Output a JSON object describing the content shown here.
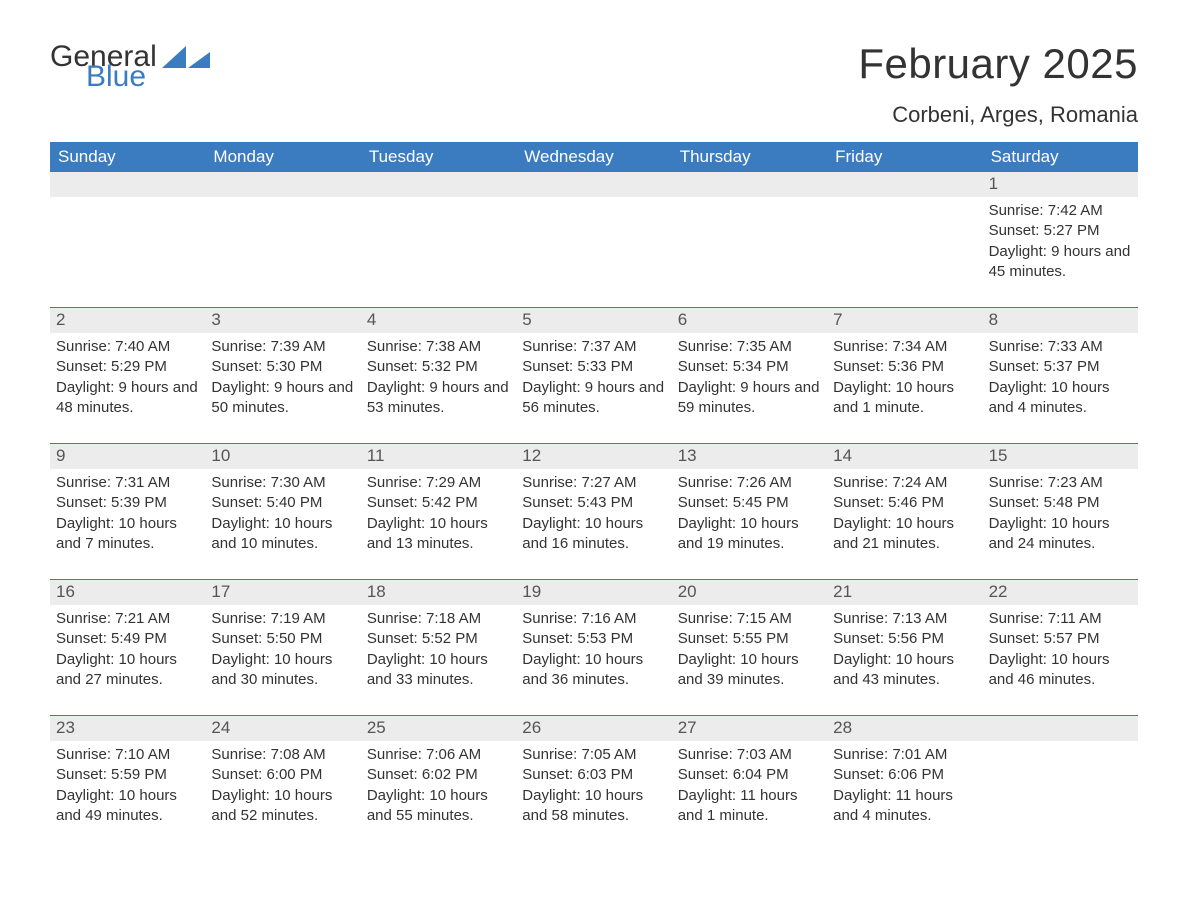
{
  "brand": {
    "word1": "General",
    "word2": "Blue"
  },
  "colors": {
    "header_bg": "#3b7bbf",
    "header_text": "#ffffff",
    "band_bg": "#ececec",
    "rule": "#3b7bbf",
    "text": "#333333",
    "brand_blue": "#3b7bbf"
  },
  "typography": {
    "month_title_pt": 42,
    "location_pt": 22,
    "weekday_pt": 17,
    "daynum_pt": 17,
    "body_pt": 15
  },
  "title": "February 2025",
  "location": "Corbeni, Arges, Romania",
  "weekdays": [
    "Sunday",
    "Monday",
    "Tuesday",
    "Wednesday",
    "Thursday",
    "Friday",
    "Saturday"
  ],
  "weeks": [
    {
      "days": [
        {
          "num": "",
          "lines": []
        },
        {
          "num": "",
          "lines": []
        },
        {
          "num": "",
          "lines": []
        },
        {
          "num": "",
          "lines": []
        },
        {
          "num": "",
          "lines": []
        },
        {
          "num": "",
          "lines": []
        },
        {
          "num": "1",
          "lines": [
            "Sunrise: 7:42 AM",
            "Sunset: 5:27 PM",
            "Daylight: 9 hours and 45 minutes."
          ]
        }
      ]
    },
    {
      "days": [
        {
          "num": "2",
          "lines": [
            "Sunrise: 7:40 AM",
            "Sunset: 5:29 PM",
            "Daylight: 9 hours and 48 minutes."
          ]
        },
        {
          "num": "3",
          "lines": [
            "Sunrise: 7:39 AM",
            "Sunset: 5:30 PM",
            "Daylight: 9 hours and 50 minutes."
          ]
        },
        {
          "num": "4",
          "lines": [
            "Sunrise: 7:38 AM",
            "Sunset: 5:32 PM",
            "Daylight: 9 hours and 53 minutes."
          ]
        },
        {
          "num": "5",
          "lines": [
            "Sunrise: 7:37 AM",
            "Sunset: 5:33 PM",
            "Daylight: 9 hours and 56 minutes."
          ]
        },
        {
          "num": "6",
          "lines": [
            "Sunrise: 7:35 AM",
            "Sunset: 5:34 PM",
            "Daylight: 9 hours and 59 minutes."
          ]
        },
        {
          "num": "7",
          "lines": [
            "Sunrise: 7:34 AM",
            "Sunset: 5:36 PM",
            "Daylight: 10 hours and 1 minute."
          ]
        },
        {
          "num": "8",
          "lines": [
            "Sunrise: 7:33 AM",
            "Sunset: 5:37 PM",
            "Daylight: 10 hours and 4 minutes."
          ]
        }
      ]
    },
    {
      "days": [
        {
          "num": "9",
          "lines": [
            "Sunrise: 7:31 AM",
            "Sunset: 5:39 PM",
            "Daylight: 10 hours and 7 minutes."
          ]
        },
        {
          "num": "10",
          "lines": [
            "Sunrise: 7:30 AM",
            "Sunset: 5:40 PM",
            "Daylight: 10 hours and 10 minutes."
          ]
        },
        {
          "num": "11",
          "lines": [
            "Sunrise: 7:29 AM",
            "Sunset: 5:42 PM",
            "Daylight: 10 hours and 13 minutes."
          ]
        },
        {
          "num": "12",
          "lines": [
            "Sunrise: 7:27 AM",
            "Sunset: 5:43 PM",
            "Daylight: 10 hours and 16 minutes."
          ]
        },
        {
          "num": "13",
          "lines": [
            "Sunrise: 7:26 AM",
            "Sunset: 5:45 PM",
            "Daylight: 10 hours and 19 minutes."
          ]
        },
        {
          "num": "14",
          "lines": [
            "Sunrise: 7:24 AM",
            "Sunset: 5:46 PM",
            "Daylight: 10 hours and 21 minutes."
          ]
        },
        {
          "num": "15",
          "lines": [
            "Sunrise: 7:23 AM",
            "Sunset: 5:48 PM",
            "Daylight: 10 hours and 24 minutes."
          ]
        }
      ]
    },
    {
      "days": [
        {
          "num": "16",
          "lines": [
            "Sunrise: 7:21 AM",
            "Sunset: 5:49 PM",
            "Daylight: 10 hours and 27 minutes."
          ]
        },
        {
          "num": "17",
          "lines": [
            "Sunrise: 7:19 AM",
            "Sunset: 5:50 PM",
            "Daylight: 10 hours and 30 minutes."
          ]
        },
        {
          "num": "18",
          "lines": [
            "Sunrise: 7:18 AM",
            "Sunset: 5:52 PM",
            "Daylight: 10 hours and 33 minutes."
          ]
        },
        {
          "num": "19",
          "lines": [
            "Sunrise: 7:16 AM",
            "Sunset: 5:53 PM",
            "Daylight: 10 hours and 36 minutes."
          ]
        },
        {
          "num": "20",
          "lines": [
            "Sunrise: 7:15 AM",
            "Sunset: 5:55 PM",
            "Daylight: 10 hours and 39 minutes."
          ]
        },
        {
          "num": "21",
          "lines": [
            "Sunrise: 7:13 AM",
            "Sunset: 5:56 PM",
            "Daylight: 10 hours and 43 minutes."
          ]
        },
        {
          "num": "22",
          "lines": [
            "Sunrise: 7:11 AM",
            "Sunset: 5:57 PM",
            "Daylight: 10 hours and 46 minutes."
          ]
        }
      ]
    },
    {
      "days": [
        {
          "num": "23",
          "lines": [
            "Sunrise: 7:10 AM",
            "Sunset: 5:59 PM",
            "Daylight: 10 hours and 49 minutes."
          ]
        },
        {
          "num": "24",
          "lines": [
            "Sunrise: 7:08 AM",
            "Sunset: 6:00 PM",
            "Daylight: 10 hours and 52 minutes."
          ]
        },
        {
          "num": "25",
          "lines": [
            "Sunrise: 7:06 AM",
            "Sunset: 6:02 PM",
            "Daylight: 10 hours and 55 minutes."
          ]
        },
        {
          "num": "26",
          "lines": [
            "Sunrise: 7:05 AM",
            "Sunset: 6:03 PM",
            "Daylight: 10 hours and 58 minutes."
          ]
        },
        {
          "num": "27",
          "lines": [
            "Sunrise: 7:03 AM",
            "Sunset: 6:04 PM",
            "Daylight: 11 hours and 1 minute."
          ]
        },
        {
          "num": "28",
          "lines": [
            "Sunrise: 7:01 AM",
            "Sunset: 6:06 PM",
            "Daylight: 11 hours and 4 minutes."
          ]
        },
        {
          "num": "",
          "lines": []
        }
      ]
    }
  ]
}
